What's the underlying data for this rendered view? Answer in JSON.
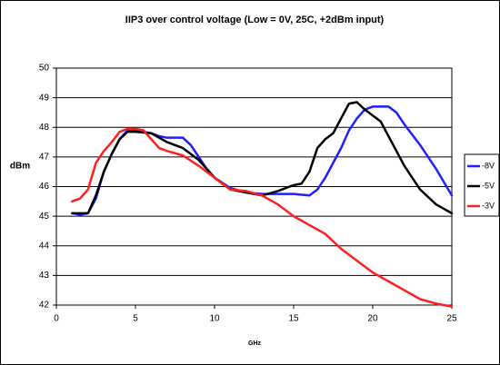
{
  "chart_data": {
    "type": "line",
    "title": "IIP3 over control voltage (Low = 0V, 25C, +2dBm input)",
    "x_label": "GHz",
    "y_label": "dBm",
    "xlim": [
      0,
      25
    ],
    "xticks": [
      0,
      5,
      10,
      15,
      20,
      25
    ],
    "ylim": [
      42,
      50
    ],
    "yticks": [
      42,
      43,
      44,
      45,
      46,
      47,
      48,
      49,
      50
    ],
    "grid": true,
    "legend": "right",
    "series": [
      {
        "name": "-8V",
        "color": "#1f1fff",
        "x": [
          1,
          1.5,
          2,
          2.5,
          3,
          3.5,
          4,
          4.5,
          5,
          5.5,
          6,
          6.5,
          7,
          7.5,
          8,
          8.5,
          9,
          9.5,
          10,
          11,
          12,
          13,
          14,
          15,
          16,
          16.5,
          17,
          17.5,
          18,
          18.5,
          19,
          19.5,
          20,
          20.5,
          21,
          21.5,
          22,
          23,
          24,
          25
        ],
        "values": [
          45.1,
          45.05,
          45.1,
          45.6,
          46.5,
          47.1,
          47.6,
          47.9,
          47.9,
          47.85,
          47.8,
          47.7,
          47.65,
          47.65,
          47.65,
          47.4,
          47.0,
          46.6,
          46.3,
          45.95,
          45.8,
          45.75,
          45.75,
          45.75,
          45.7,
          45.9,
          46.3,
          46.8,
          47.3,
          47.9,
          48.3,
          48.6,
          48.7,
          48.7,
          48.7,
          48.5,
          48.1,
          47.4,
          46.6,
          45.7
        ]
      },
      {
        "name": "-5V",
        "color": "#000000",
        "x": [
          1,
          2,
          2.5,
          3,
          3.5,
          4,
          4.5,
          5,
          6,
          7,
          8,
          9,
          10,
          11,
          12,
          13,
          14,
          15,
          15.5,
          16,
          16.5,
          17,
          17.5,
          18,
          18.5,
          19,
          19.5,
          20,
          20.5,
          21,
          22,
          23,
          24,
          25
        ],
        "values": [
          45.1,
          45.1,
          45.7,
          46.5,
          47.1,
          47.6,
          47.85,
          47.85,
          47.8,
          47.5,
          47.3,
          46.9,
          46.3,
          45.9,
          45.8,
          45.7,
          45.85,
          46.05,
          46.1,
          46.5,
          47.3,
          47.6,
          47.8,
          48.3,
          48.8,
          48.85,
          48.6,
          48.4,
          48.2,
          47.7,
          46.7,
          45.9,
          45.4,
          45.1
        ]
      },
      {
        "name": "-3V",
        "color": "#ff1f1f",
        "x": [
          1,
          1.5,
          2,
          2.5,
          3,
          3.5,
          4,
          4.5,
          5,
          5.5,
          6,
          6.5,
          7,
          8,
          9,
          10,
          11,
          12,
          13,
          14,
          15,
          16,
          17,
          18,
          19,
          20,
          21,
          22,
          23,
          24,
          25
        ],
        "values": [
          45.5,
          45.6,
          45.9,
          46.8,
          47.2,
          47.5,
          47.85,
          47.95,
          47.95,
          47.9,
          47.6,
          47.3,
          47.2,
          47.05,
          46.7,
          46.3,
          45.9,
          45.85,
          45.7,
          45.4,
          45.0,
          44.7,
          44.4,
          43.9,
          43.5,
          43.1,
          42.8,
          42.5,
          42.2,
          42.05,
          41.95
        ]
      }
    ]
  }
}
